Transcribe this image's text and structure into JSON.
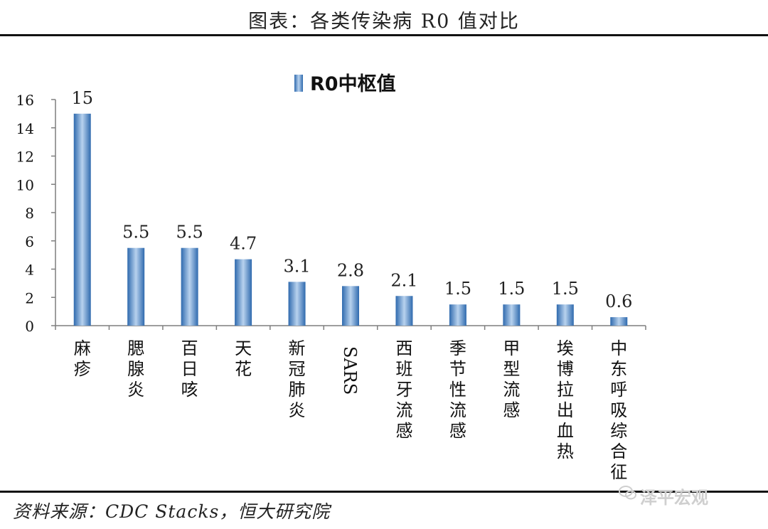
{
  "header": {
    "title": "图表：各类传染病 R0 值对比"
  },
  "footer": {
    "source": "资料来源：CDC Stacks，恒大研究院",
    "watermark": "泽平宏观"
  },
  "chart_data": {
    "type": "bar",
    "title": "图表：各类传染病 R0 值对比",
    "legend": [
      "R0中枢值"
    ],
    "series": [
      {
        "name": "R0中枢值",
        "values": [
          15,
          5.5,
          5.5,
          4.7,
          3.1,
          2.8,
          2.1,
          1.5,
          1.5,
          1.5,
          0.6
        ]
      }
    ],
    "categories": [
      "麻疹",
      "腮腺炎",
      "百日咳",
      "天花",
      "新冠肺炎",
      "SARS",
      "西班牙流感",
      "季节性流感",
      "甲型流感",
      "埃博拉出血热",
      "中东呼吸综合征"
    ],
    "data_labels": [
      "15",
      "5.5",
      "5.5",
      "4.7",
      "3.1",
      "2.8",
      "2.1",
      "1.5",
      "1.5",
      "1.5",
      "0.6"
    ],
    "yticks": [
      "0",
      "2",
      "4",
      "6",
      "8",
      "10",
      "12",
      "14",
      "16"
    ],
    "ylim": [
      0,
      16
    ],
    "xlabel": "",
    "ylabel": "",
    "legend_position": "top-center",
    "colors": {
      "bar_light": "#b8d2ee",
      "bar_dark": "#2f6aae",
      "axis": "#7f7f7f"
    }
  }
}
